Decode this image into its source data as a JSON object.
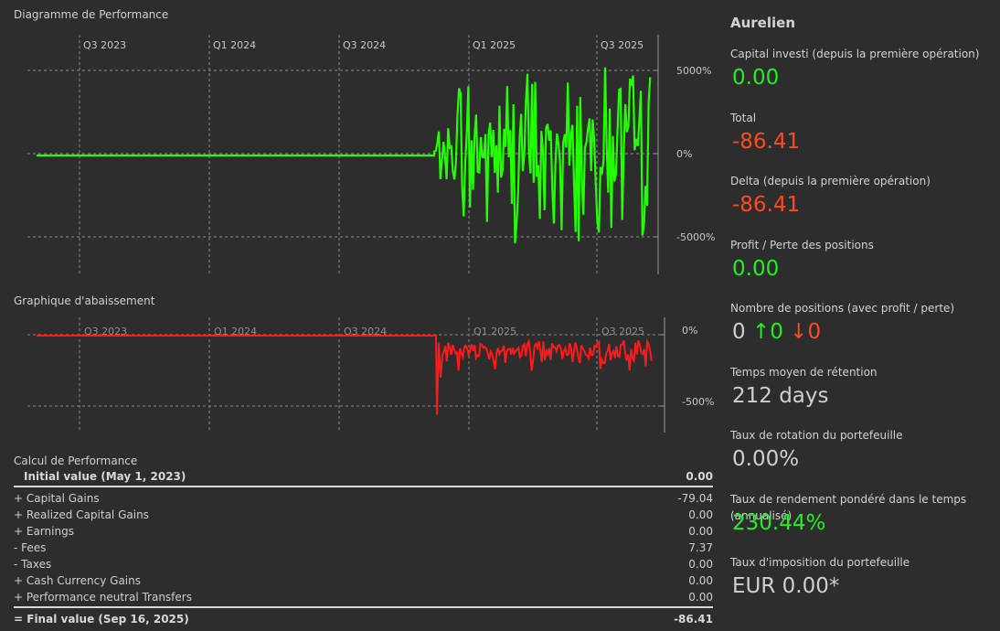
{
  "performance_chart": {
    "title": "Diagramme de Performance",
    "x_ticks": [
      "Q3 2023",
      "Q1 2024",
      "Q3 2024",
      "Q1 2025",
      "Q3 2025"
    ],
    "y_ticks": [
      "5000%",
      "0%",
      "-5000%"
    ],
    "line_color": "#22ff00"
  },
  "drawdown_chart": {
    "title": "Graphique d'abaissement",
    "x_ticks": [
      "Q3 2023",
      "Q1 2024",
      "Q3 2024",
      "Q1 2025",
      "Q3 2025"
    ],
    "y_ticks": [
      "0%",
      "-500%"
    ],
    "line_color": "#ff1a1a"
  },
  "chart_data": [
    {
      "type": "line",
      "title": "Diagramme de Performance",
      "x": [
        "2023-05-01",
        "2025-09-16"
      ],
      "x_ticks": [
        "Q3 2023",
        "Q1 2024",
        "Q3 2024",
        "Q1 2025",
        "Q3 2025"
      ],
      "ylim": [
        -7000,
        7000
      ],
      "y_unit": "%",
      "series": [
        {
          "flat_until": "2024-11-20",
          "flat_value": 0,
          "volatile_range": [
            -5500,
            5500
          ]
        }
      ]
    },
    {
      "type": "line",
      "title": "Graphique d'abaissement",
      "x": [
        "2023-05-01",
        "2025-09-16"
      ],
      "x_ticks": [
        "Q3 2023",
        "Q1 2024",
        "Q3 2024",
        "Q1 2025",
        "Q3 2025"
      ],
      "ylim": [
        -600,
        100
      ],
      "y_unit": "%",
      "series": [
        {
          "flat_until": "2024-11-20",
          "flat_value": 0,
          "min": -560,
          "typical_range": [
            -200,
            -20
          ]
        }
      ]
    }
  ],
  "calc": {
    "title": "Calcul de Performance",
    "initial": {
      "label": "Initial value (May 1, 2023)",
      "value": "0.00"
    },
    "rows": [
      {
        "sign": "+",
        "label": "Capital Gains",
        "value": "-79.04"
      },
      {
        "sign": "+",
        "label": "Realized Capital Gains",
        "value": "0.00"
      },
      {
        "sign": "+",
        "label": "Earnings",
        "value": "0.00"
      },
      {
        "sign": "-",
        "label": "Fees",
        "value": "7.37"
      },
      {
        "sign": "-",
        "label": "Taxes",
        "value": "0.00"
      },
      {
        "sign": "+",
        "label": "Cash Currency Gains",
        "value": "0.00"
      },
      {
        "sign": "+",
        "label": "Performance neutral Transfers",
        "value": "0.00"
      }
    ],
    "final": {
      "sign": "=",
      "label": "Final value (Sep 16, 2025)",
      "value": "-86.41"
    }
  },
  "side": {
    "name": "Aurelien",
    "stats": [
      {
        "label": "Capital investi (depuis la première opération)",
        "value": "0.00",
        "color": "green"
      },
      {
        "label": "Total",
        "value": "-86.41",
        "color": "red"
      },
      {
        "label": "Delta (depuis la première opération)",
        "value": "-86.41",
        "color": "red"
      },
      {
        "label": "Profit / Perte des positions",
        "value": "0.00",
        "color": "green"
      },
      {
        "label": "Nombre de positions (avec profit / perte)",
        "value": "0",
        "profit": "↑0",
        "loss": "↓0",
        "color": "grey"
      },
      {
        "label": "Temps moyen de rétention",
        "value": "212 days",
        "color": "grey"
      },
      {
        "label": "Taux de rotation du portefeuille",
        "value": "0.00%",
        "color": "grey"
      },
      {
        "label": "Taux de rendement pondéré dans le temps (annualisé)",
        "value": "230.44%",
        "color": "green"
      },
      {
        "label": "Taux d'imposition du portefeuille",
        "value": "EUR 0.00*",
        "color": "grey"
      }
    ]
  }
}
